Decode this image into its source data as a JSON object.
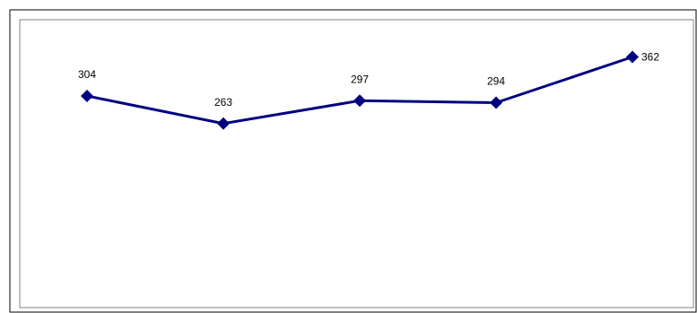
{
  "chart_data": {
    "type": "line",
    "categories": [
      "",
      "",
      "",
      "",
      ""
    ],
    "values": [
      304,
      263,
      297,
      294,
      362
    ],
    "data_labels": [
      "304",
      "263",
      "297",
      "294",
      "362"
    ],
    "title": "",
    "xlabel": "",
    "ylabel": "",
    "ylim": [
      0,
      400
    ],
    "grid": false,
    "legend": "none",
    "series_color": "#000080"
  }
}
